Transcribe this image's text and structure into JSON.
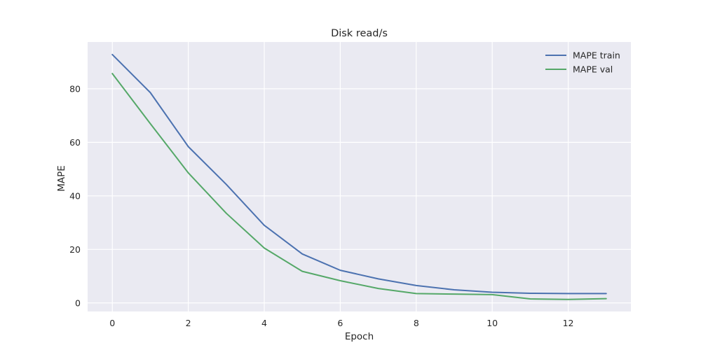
{
  "chart_data": {
    "type": "line",
    "title": "Disk read/s",
    "xlabel": "Epoch",
    "ylabel": "MAPE",
    "xlim": [
      -0.65,
      13.65
    ],
    "ylim": [
      -3.2,
      97.5
    ],
    "xticks": [
      0,
      2,
      4,
      6,
      8,
      10,
      12
    ],
    "yticks": [
      0,
      20,
      40,
      60,
      80
    ],
    "grid": true,
    "legend_position": "top-right",
    "x": [
      0,
      1,
      2,
      3,
      4,
      5,
      6,
      7,
      8,
      9,
      10,
      11,
      12,
      13
    ],
    "series": [
      {
        "name": "MAPE train",
        "color": "#4c72b0",
        "values": [
          92.8,
          78.6,
          58.4,
          44.3,
          29.0,
          18.3,
          12.2,
          9.0,
          6.5,
          4.9,
          4.0,
          3.6,
          3.5,
          3.5
        ]
      },
      {
        "name": "MAPE val",
        "color": "#55a868",
        "values": [
          85.7,
          67.0,
          48.6,
          33.5,
          20.5,
          11.8,
          8.3,
          5.4,
          3.5,
          3.3,
          3.1,
          1.5,
          1.3,
          1.6
        ]
      }
    ]
  },
  "colors": {
    "plot_background": "#eaeaf2",
    "grid": "#ffffff",
    "text": "#262626"
  }
}
